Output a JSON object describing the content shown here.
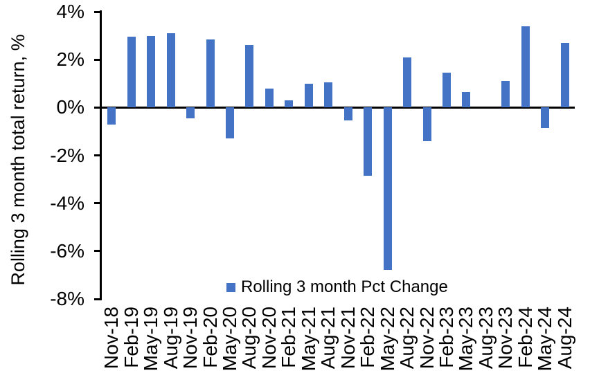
{
  "chart_data": {
    "type": "bar",
    "title": "",
    "xlabel": "",
    "ylabel": "Rolling 3 month total return, %",
    "legend_entries": [
      "Rolling 3 month Pct Change"
    ],
    "legend_position": "bottom-center",
    "bar_color": "#4472C4",
    "axis_color": "#000000",
    "background_color": "#FFFFFF",
    "grid": false,
    "ylim": [
      -8,
      4
    ],
    "yticks": [
      4,
      2,
      0,
      -2,
      -4,
      -6,
      -8
    ],
    "ytick_labels": [
      "4%",
      "2%",
      "0%",
      "-2%",
      "-4%",
      "-6%",
      "-8%"
    ],
    "xtick_rotation": -90,
    "categories": [
      "Nov-18",
      "Feb-19",
      "May-19",
      "Aug-19",
      "Nov-19",
      "Feb-20",
      "May-20",
      "Aug-20",
      "Nov-20",
      "Feb-21",
      "May-21",
      "Aug-21",
      "Nov-21",
      "Feb-22",
      "May-22",
      "Aug-22",
      "Nov-22",
      "Feb-23",
      "May-23",
      "Aug-23",
      "Nov-23",
      "Feb-24",
      "May-24",
      "Aug-24"
    ],
    "values": [
      -0.7,
      2.95,
      3.0,
      3.1,
      -0.45,
      2.85,
      -1.3,
      2.6,
      0.8,
      0.3,
      1.0,
      1.05,
      -0.55,
      -2.85,
      -6.8,
      2.1,
      -1.4,
      1.45,
      0.65,
      0.0,
      1.1,
      3.4,
      -0.85,
      2.7
    ]
  }
}
